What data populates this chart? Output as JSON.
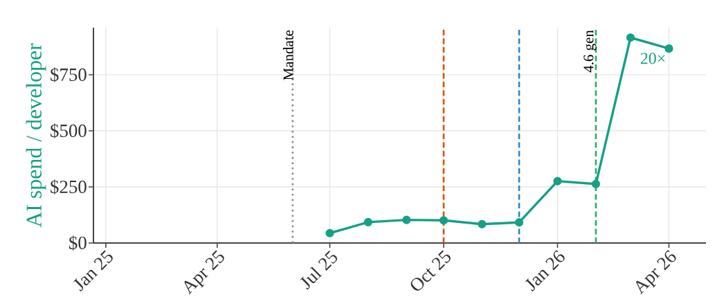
{
  "chart_data": {
    "type": "line",
    "ylabel": "AI spend / developer",
    "x": [
      "2025-07-01",
      "2025-08-01",
      "2025-09-01",
      "2025-10-01",
      "2025-11-01",
      "2025-12-01",
      "2026-01-01",
      "2026-02-01",
      "2026-03-01",
      "2026-04-01"
    ],
    "series": [
      {
        "color": "#16a085",
        "values": [
          44,
          93,
          103,
          101,
          84,
          92,
          276,
          263,
          916,
          867
        ]
      }
    ],
    "xlim": [
      "2024-12-22",
      "2026-05-01"
    ],
    "ylim": [
      0,
      960
    ],
    "xticks": [
      {
        "value": "2025-01-01",
        "label": "Jan 25"
      },
      {
        "value": "2025-04-01",
        "label": "Apr 25"
      },
      {
        "value": "2025-07-01",
        "label": "Jul 25"
      },
      {
        "value": "2025-10-01",
        "label": "Oct 25"
      },
      {
        "value": "2026-01-01",
        "label": "Jan 26"
      },
      {
        "value": "2026-04-01",
        "label": "Apr 26"
      }
    ],
    "yticks": [
      {
        "value": 0,
        "label": "$0"
      },
      {
        "value": 250,
        "label": "$250"
      },
      {
        "value": 500,
        "label": "$500"
      },
      {
        "value": 750,
        "label": "$750"
      }
    ],
    "grid": true,
    "marker": "circle",
    "line_style": "solid",
    "ref_lines": [
      {
        "axis": "x",
        "value": "2025-06-01",
        "label": "Mandate",
        "color": "#7f8c8d",
        "line_style": "dotted"
      },
      {
        "axis": "x",
        "value": "2025-10-01",
        "color": "#d35400",
        "line_style": "dashed"
      },
      {
        "axis": "x",
        "value": "2025-12-01",
        "color": "#2e86c1",
        "line_style": "dashed"
      },
      {
        "axis": "x",
        "value": "2026-02-01",
        "label": "4.6 gen",
        "color": "#27ae60",
        "line_style": "dashed"
      }
    ],
    "annotations": [
      {
        "text": "20×",
        "x": "2026-04-01",
        "y": 867
      }
    ]
  }
}
